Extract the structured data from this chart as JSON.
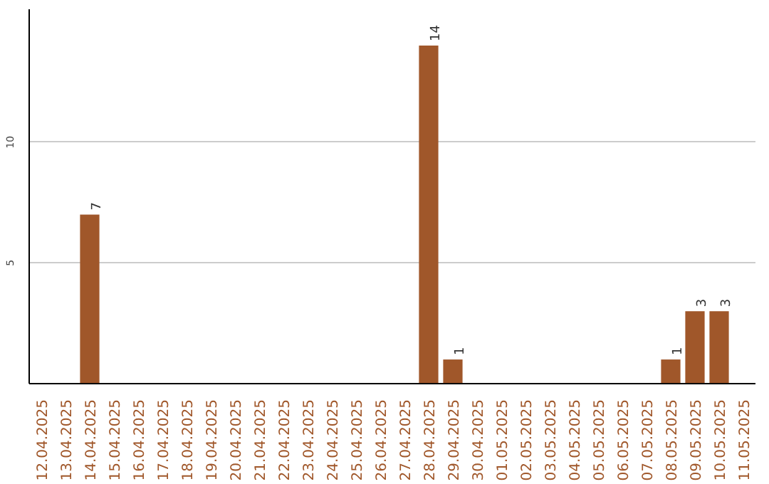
{
  "chart_data": {
    "type": "bar",
    "categories": [
      "12.04.2025",
      "13.04.2025",
      "14.04.2025",
      "15.04.2025",
      "16.04.2025",
      "17.04.2025",
      "18.04.2025",
      "19.04.2025",
      "20.04.2025",
      "21.04.2025",
      "22.04.2025",
      "23.04.2025",
      "24.04.2025",
      "25.04.2025",
      "26.04.2025",
      "27.04.2025",
      "28.04.2025",
      "29.04.2025",
      "30.04.2025",
      "01.05.2025",
      "02.05.2025",
      "03.05.2025",
      "04.05.2025",
      "05.05.2025",
      "06.05.2025",
      "07.05.2025",
      "08.05.2025",
      "09.05.2025",
      "10.05.2025",
      "11.05.2025"
    ],
    "values": [
      0,
      0,
      7,
      0,
      0,
      0,
      0,
      0,
      0,
      0,
      0,
      0,
      0,
      0,
      0,
      0,
      14,
      1,
      0,
      0,
      0,
      0,
      0,
      0,
      0,
      0,
      1,
      3,
      3,
      0
    ],
    "value_labels": [
      null,
      null,
      "7",
      null,
      null,
      null,
      null,
      null,
      null,
      null,
      null,
      null,
      null,
      null,
      null,
      null,
      "14",
      "1",
      null,
      null,
      null,
      null,
      null,
      null,
      null,
      null,
      "1",
      "3",
      "3",
      null
    ],
    "color": "#a0572a",
    "ylim": [
      0,
      15.5
    ],
    "yticks": [
      5,
      10
    ],
    "grid": "y"
  }
}
